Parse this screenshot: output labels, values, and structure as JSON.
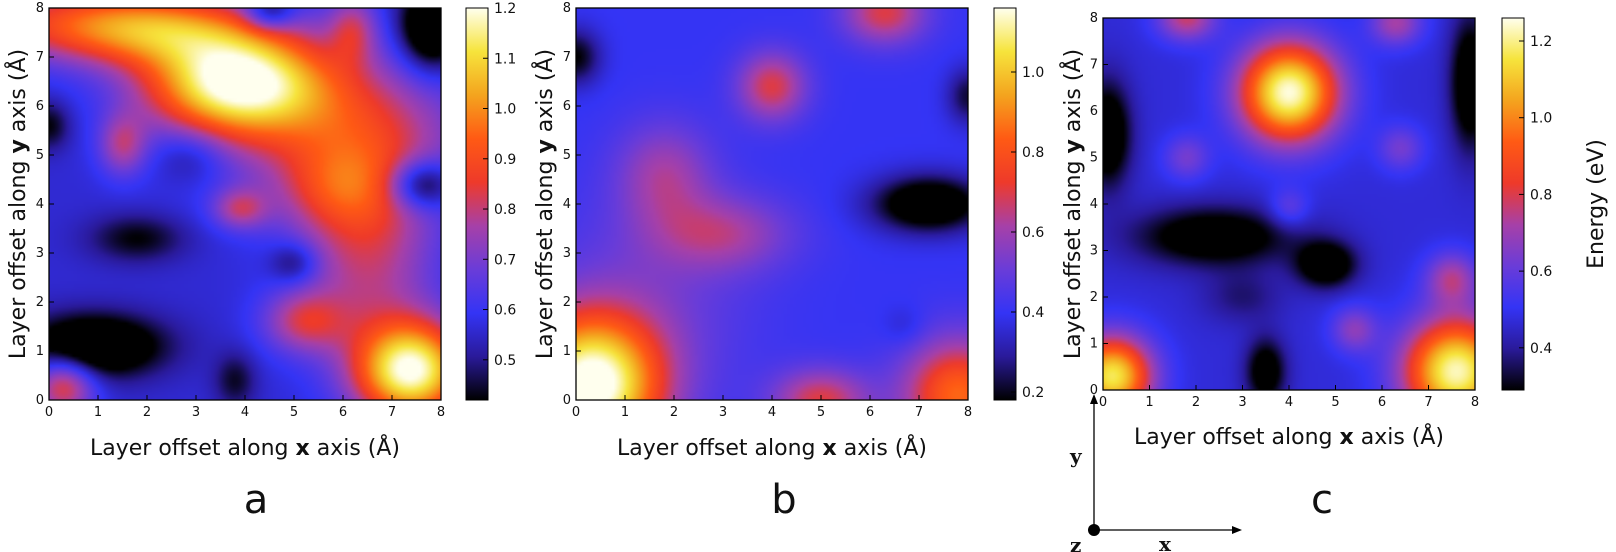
{
  "figure": {
    "colormap_stops": [
      "#000000",
      "#2a1a9a",
      "#3434f5",
      "#6a3cd8",
      "#a640a8",
      "#ee3a2a",
      "#ff5a14",
      "#f4a41e",
      "#f6e43c",
      "#ffffee"
    ],
    "compass": {
      "x_label": "x",
      "y_label": "y",
      "z_label": "z"
    }
  },
  "chart_data": [
    {
      "type": "heatmap",
      "panel_label": "a",
      "xlabel_prefix": "Layer offset along ",
      "xlabel_bold": "x",
      "xlabel_suffix": " axis (Å)",
      "ylabel_prefix": "Layer offset along ",
      "ylabel_bold": "y",
      "ylabel_suffix": " axis  (Å)",
      "xlim": [
        0,
        8
      ],
      "ylim": [
        0,
        8
      ],
      "xticks": [
        "0",
        "1",
        "2",
        "3",
        "4",
        "5",
        "6",
        "7",
        "8"
      ],
      "yticks": [
        "0",
        "1",
        "2",
        "3",
        "4",
        "5",
        "6",
        "7",
        "8"
      ],
      "colorbar_range": [
        0.42,
        1.2
      ],
      "colorbar_ticks": [
        "0.5",
        "0.6",
        "0.7",
        "0.8",
        "0.9",
        "1.0",
        "1.1",
        "1.2"
      ],
      "colorbar_tick_values": [
        0.5,
        0.6,
        0.7,
        0.8,
        0.9,
        1.0,
        1.1,
        1.2
      ],
      "colorbar_label": "",
      "base_value": 0.56,
      "features": [
        {
          "x": 3.8,
          "y": 6.5,
          "sx": 1.3,
          "sy": 0.75,
          "a": 0.62
        },
        {
          "x": 0.9,
          "y": 7.7,
          "sx": 1.9,
          "sy": 0.55,
          "a": 0.3
        },
        {
          "x": 2.2,
          "y": 7.5,
          "sx": 1.4,
          "sy": 0.5,
          "a": 0.2
        },
        {
          "x": 6.0,
          "y": 5.5,
          "sx": 1.8,
          "sy": 1.1,
          "a": 0.24
        },
        {
          "x": 6.5,
          "y": 3.2,
          "sx": 1.0,
          "sy": 1.6,
          "a": 0.24
        },
        {
          "x": 5.8,
          "y": 4.3,
          "sx": 0.8,
          "sy": 0.6,
          "a": 0.12
        },
        {
          "x": 5.2,
          "y": 1.6,
          "sx": 0.6,
          "sy": 0.45,
          "a": 0.22
        },
        {
          "x": 7.4,
          "y": 0.6,
          "sx": 0.8,
          "sy": 0.7,
          "a": 0.62
        },
        {
          "x": 0.3,
          "y": 0.3,
          "sx": 0.45,
          "sy": 0.45,
          "a": 0.3
        },
        {
          "x": 1.5,
          "y": 5.2,
          "sx": 0.35,
          "sy": 0.45,
          "a": 0.2
        },
        {
          "x": 3.9,
          "y": 3.9,
          "sx": 0.4,
          "sy": 0.3,
          "a": 0.2
        },
        {
          "x": 6.2,
          "y": 7.6,
          "sx": 0.35,
          "sy": 0.5,
          "a": 0.18
        },
        {
          "x": 0.9,
          "y": 1.1,
          "sx": 1.0,
          "sy": 0.45,
          "a": -0.3
        },
        {
          "x": 7.8,
          "y": 7.6,
          "sx": 0.45,
          "sy": 0.6,
          "a": -0.32
        },
        {
          "x": 4.5,
          "y": 7.9,
          "sx": 0.35,
          "sy": 0.25,
          "a": -0.2
        },
        {
          "x": 1.8,
          "y": 3.3,
          "sx": 0.7,
          "sy": 0.35,
          "a": -0.14
        },
        {
          "x": 2.9,
          "y": 5.0,
          "sx": 0.5,
          "sy": 0.4,
          "a": -0.1
        },
        {
          "x": 5.0,
          "y": 2.8,
          "sx": 0.35,
          "sy": 0.3,
          "a": -0.14
        },
        {
          "x": 7.6,
          "y": 4.4,
          "sx": 0.45,
          "sy": 0.35,
          "a": -0.26
        },
        {
          "x": 0.0,
          "y": 5.6,
          "sx": 0.3,
          "sy": 0.35,
          "a": -0.14
        },
        {
          "x": 3.8,
          "y": 0.4,
          "sx": 0.3,
          "sy": 0.4,
          "a": -0.12
        }
      ]
    },
    {
      "type": "heatmap",
      "panel_label": "b",
      "xlabel_prefix": "Layer offset along ",
      "xlabel_bold": "x",
      "xlabel_suffix": " axis (Å)",
      "ylabel_prefix": "Layer offset along ",
      "ylabel_bold": "y",
      "ylabel_suffix": " axis  (Å)",
      "xlim": [
        0,
        8
      ],
      "ylim": [
        0,
        8
      ],
      "xticks": [
        "0",
        "1",
        "2",
        "3",
        "4",
        "5",
        "6",
        "7",
        "8"
      ],
      "yticks": [
        "0",
        "1",
        "2",
        "3",
        "4",
        "5",
        "6",
        "7",
        "8"
      ],
      "colorbar_range": [
        0.18,
        1.16
      ],
      "colorbar_ticks": [
        "0.2",
        "0.4",
        "0.6",
        "0.8",
        "1.0"
      ],
      "colorbar_tick_values": [
        0.2,
        0.4,
        0.6,
        0.8,
        1.0
      ],
      "colorbar_label": "",
      "base_value": 0.4,
      "features": [
        {
          "x": 0.3,
          "y": 0.3,
          "sx": 1.0,
          "sy": 1.0,
          "a": 0.8
        },
        {
          "x": 7.8,
          "y": 0.1,
          "sx": 0.8,
          "sy": 0.8,
          "a": 0.45
        },
        {
          "x": 5.0,
          "y": 0.0,
          "sx": 0.7,
          "sy": 0.45,
          "a": 0.3
        },
        {
          "x": 4.0,
          "y": 6.4,
          "sx": 0.5,
          "sy": 0.5,
          "a": 0.3
        },
        {
          "x": 6.3,
          "y": 7.9,
          "sx": 0.6,
          "sy": 0.45,
          "a": 0.3
        },
        {
          "x": 1.8,
          "y": 4.6,
          "sx": 0.7,
          "sy": 0.75,
          "a": 0.2
        },
        {
          "x": 3.0,
          "y": 3.4,
          "sx": 1.0,
          "sy": 0.55,
          "a": 0.2
        },
        {
          "x": 1.5,
          "y": 2.0,
          "sx": 1.5,
          "sy": 1.5,
          "a": 0.1
        },
        {
          "x": 7.2,
          "y": 4.0,
          "sx": 0.8,
          "sy": 0.4,
          "a": -0.36
        },
        {
          "x": 0.0,
          "y": 7.0,
          "sx": 0.35,
          "sy": 0.4,
          "a": -0.22
        },
        {
          "x": 8.0,
          "y": 6.2,
          "sx": 0.3,
          "sy": 0.4,
          "a": -0.18
        },
        {
          "x": 6.7,
          "y": 1.5,
          "sx": 0.3,
          "sy": 0.3,
          "a": -0.06
        }
      ]
    },
    {
      "type": "heatmap",
      "panel_label": "c",
      "xlabel_prefix": "Layer offset along ",
      "xlabel_bold": "x",
      "xlabel_suffix": " axis (Å)",
      "ylabel_prefix": "Layer offset along ",
      "ylabel_bold": "y",
      "ylabel_suffix": " axis  (Å)",
      "xlim": [
        0,
        8
      ],
      "ylim": [
        0,
        8
      ],
      "xticks": [
        "0",
        "1",
        "2",
        "3",
        "4",
        "5",
        "6",
        "7",
        "8"
      ],
      "yticks": [
        "0",
        "1",
        "2",
        "3",
        "4",
        "5",
        "6",
        "7",
        "8"
      ],
      "colorbar_range": [
        0.29,
        1.26
      ],
      "colorbar_ticks": [
        "0.4",
        "0.6",
        "0.8",
        "1.0",
        "1.2"
      ],
      "colorbar_tick_values": [
        0.4,
        0.6,
        0.8,
        1.0,
        1.2
      ],
      "colorbar_label": "Energy (eV)",
      "base_value": 0.47,
      "features": [
        {
          "x": 4.0,
          "y": 6.4,
          "sx": 0.75,
          "sy": 0.75,
          "a": 0.78
        },
        {
          "x": 0.2,
          "y": 0.3,
          "sx": 0.6,
          "sy": 0.6,
          "a": 0.7
        },
        {
          "x": 7.6,
          "y": 0.4,
          "sx": 0.8,
          "sy": 0.8,
          "a": 0.76
        },
        {
          "x": 1.8,
          "y": 8.0,
          "sx": 0.45,
          "sy": 0.35,
          "a": 0.3
        },
        {
          "x": 6.3,
          "y": 7.9,
          "sx": 0.4,
          "sy": 0.35,
          "a": 0.25
        },
        {
          "x": 7.5,
          "y": 2.4,
          "sx": 0.4,
          "sy": 0.4,
          "a": 0.25
        },
        {
          "x": 5.4,
          "y": 1.3,
          "sx": 0.35,
          "sy": 0.35,
          "a": 0.2
        },
        {
          "x": 1.8,
          "y": 5.0,
          "sx": 0.35,
          "sy": 0.35,
          "a": 0.16
        },
        {
          "x": 6.4,
          "y": 5.2,
          "sx": 0.35,
          "sy": 0.35,
          "a": 0.16
        },
        {
          "x": 4.0,
          "y": 3.9,
          "sx": 0.3,
          "sy": 0.3,
          "a": 0.14
        },
        {
          "x": 0.1,
          "y": 5.5,
          "sx": 0.35,
          "sy": 0.8,
          "a": -0.3
        },
        {
          "x": 7.9,
          "y": 6.6,
          "sx": 0.3,
          "sy": 1.0,
          "a": -0.3
        },
        {
          "x": 2.4,
          "y": 3.3,
          "sx": 1.2,
          "sy": 0.45,
          "a": -0.28
        },
        {
          "x": 4.8,
          "y": 2.7,
          "sx": 0.45,
          "sy": 0.35,
          "a": -0.3
        },
        {
          "x": 3.5,
          "y": 0.4,
          "sx": 0.3,
          "sy": 0.5,
          "a": -0.26
        },
        {
          "x": 3.0,
          "y": 2.0,
          "sx": 0.6,
          "sy": 0.4,
          "a": -0.1
        }
      ]
    }
  ]
}
